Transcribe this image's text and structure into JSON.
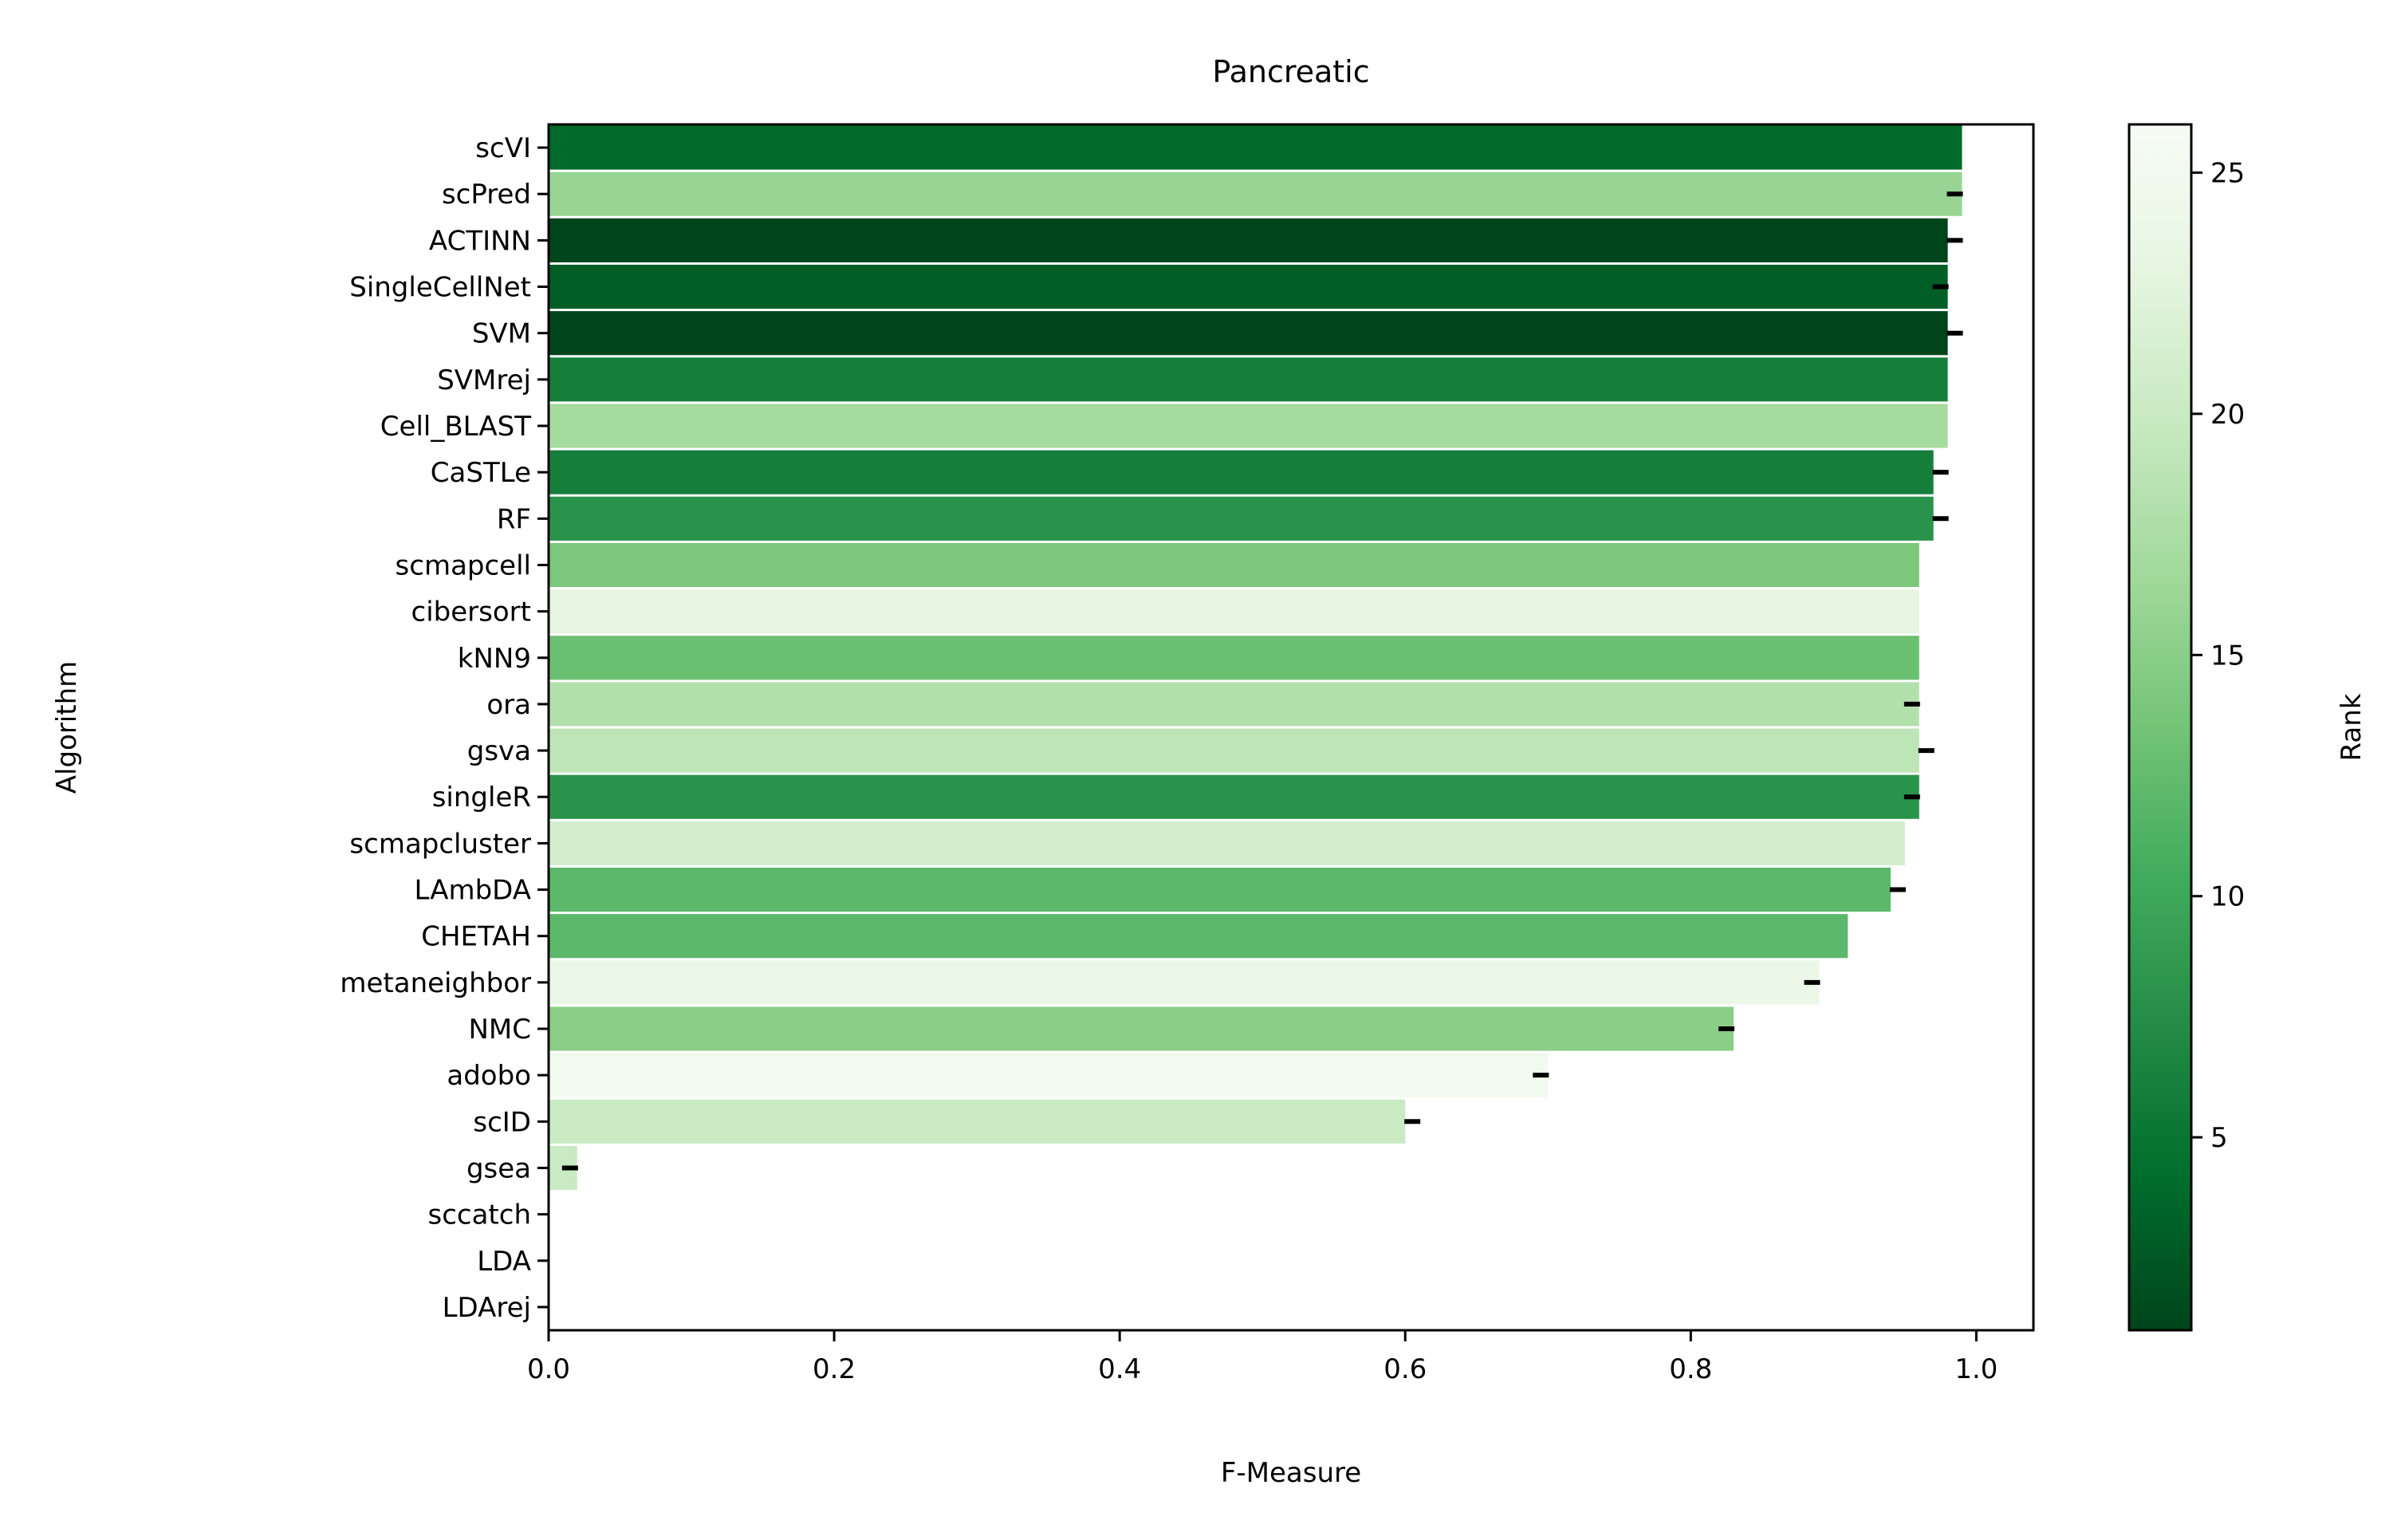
{
  "chart_data": {
    "type": "bar",
    "orientation": "horizontal",
    "title": "Pancreatic",
    "xlabel": "F-Measure",
    "ylabel": "Algorithm",
    "xlim": [
      0,
      1.04
    ],
    "xticks": [
      "0.0",
      "0.2",
      "0.4",
      "0.6",
      "0.8",
      "1.0"
    ],
    "categories": [
      "scVI",
      "scPred",
      "ACTINN",
      "SingleCellNet",
      "SVM",
      "SVMrej",
      "Cell_BLAST",
      "CaSTLe",
      "RF",
      "scmapcell",
      "cibersort",
      "kNN9",
      "ora",
      "gsva",
      "singleR",
      "scmapcluster",
      "LAmbDA",
      "CHETAH",
      "metaneighbor",
      "NMC",
      "adobo",
      "scID",
      "gsea",
      "sccatch",
      "LDA",
      "LDArej"
    ],
    "values": [
      0.99,
      0.99,
      0.98,
      0.98,
      0.98,
      0.98,
      0.98,
      0.97,
      0.97,
      0.96,
      0.96,
      0.96,
      0.96,
      0.96,
      0.96,
      0.95,
      0.94,
      0.91,
      0.89,
      0.83,
      0.7,
      0.6,
      0.02,
      0,
      0,
      0
    ],
    "error_marks": [
      null,
      0.985,
      0.985,
      0.975,
      0.985,
      null,
      null,
      0.975,
      0.975,
      null,
      null,
      null,
      0.955,
      0.965,
      0.955,
      null,
      0.945,
      null,
      0.885,
      0.825,
      0.695,
      0.605,
      0.015,
      null,
      null,
      null
    ],
    "rank": [
      4,
      16,
      1,
      3,
      1,
      6,
      17,
      6,
      8,
      14,
      23,
      13,
      18,
      19,
      8,
      21,
      12,
      12,
      24,
      15,
      25,
      20,
      20,
      null,
      null,
      null
    ],
    "colorbar": {
      "label": "Rank",
      "range": [
        1,
        26
      ],
      "ticks": [
        "5",
        "10",
        "15",
        "20",
        "25"
      ],
      "colormap": "Greens_r",
      "stops": [
        "#00441b",
        "#006d2c",
        "#238b45",
        "#41ab5d",
        "#74c476",
        "#a1d99b",
        "#c7e9c0",
        "#e5f5e0",
        "#f7fcf5"
      ]
    },
    "grid": false,
    "legend": "none"
  }
}
